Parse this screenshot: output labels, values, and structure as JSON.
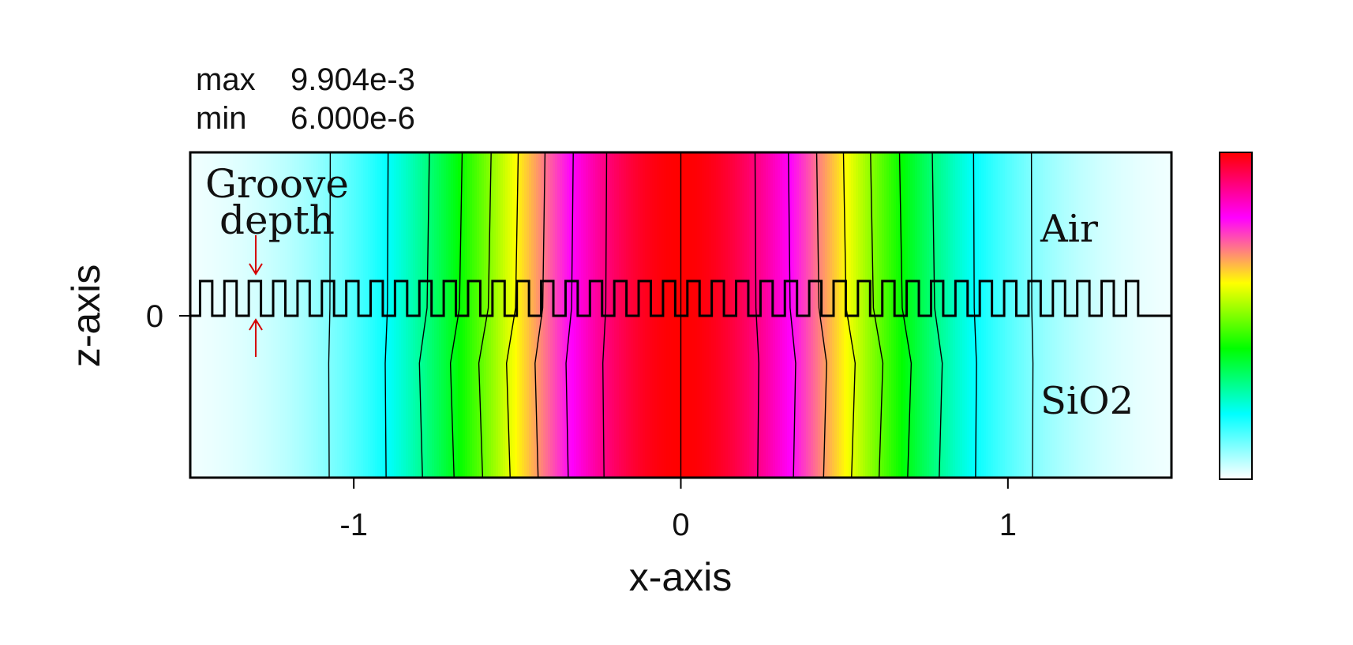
{
  "chart_data": {
    "type": "heatmap",
    "title": "",
    "stats": {
      "max_label": "max",
      "max_value": "9.904e-3",
      "min_label": "min",
      "min_value": "6.000e-6"
    },
    "xlabel": "x-axis",
    "ylabel": "z-axis",
    "xlim": [
      -1.5,
      1.5
    ],
    "x_ticks": [
      {
        "value": -1,
        "label": "-1"
      },
      {
        "value": 0,
        "label": "0"
      },
      {
        "value": 1,
        "label": "1"
      }
    ],
    "z_ticks": [
      {
        "value": 0,
        "label": "0"
      }
    ],
    "regions": {
      "upper": "Air",
      "lower": "SiO2"
    },
    "annotation": {
      "line1": "Groove",
      "line2": "depth"
    },
    "grating": {
      "period": 0.0745,
      "duty_cycle": 0.5,
      "x_start": -1.47,
      "x_end": 1.47
    },
    "field_profile": {
      "shape": "gaussian",
      "center_x": 0,
      "sigma_x": 0.5
    },
    "contour_levels": [
      0.1,
      0.2,
      0.3,
      0.4,
      0.5,
      0.6,
      0.7,
      0.8,
      0.9
    ],
    "colormap": [
      "#ffffff",
      "#00ffff",
      "#00ff00",
      "#ffff00",
      "#ff00ff",
      "#ff0000"
    ],
    "annotation_color": "#d40000",
    "grid": false,
    "colorbar": "right"
  }
}
